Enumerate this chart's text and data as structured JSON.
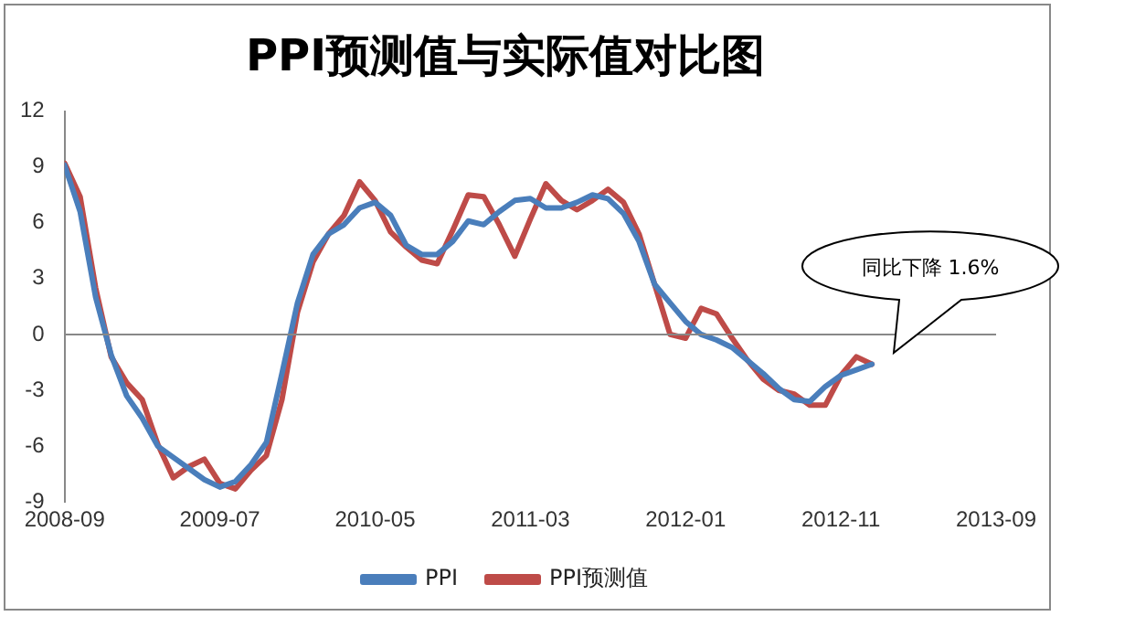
{
  "chart_data": {
    "type": "line",
    "title": "PPI预测值与实际值对比图",
    "x": [
      "2008-09",
      "2008-10",
      "2008-11",
      "2008-12",
      "2009-01",
      "2009-02",
      "2009-03",
      "2009-04",
      "2009-05",
      "2009-06",
      "2009-07",
      "2009-08",
      "2009-09",
      "2009-10",
      "2009-11",
      "2009-12",
      "2010-01",
      "2010-02",
      "2010-03",
      "2010-04",
      "2010-05",
      "2010-06",
      "2010-07",
      "2010-08",
      "2010-09",
      "2010-10",
      "2010-11",
      "2010-12",
      "2011-01",
      "2011-02",
      "2011-03",
      "2011-04",
      "2011-05",
      "2011-06",
      "2011-07",
      "2011-08",
      "2011-09",
      "2011-10",
      "2011-11",
      "2011-12",
      "2012-01",
      "2012-02",
      "2012-03",
      "2012-04",
      "2012-05",
      "2012-06",
      "2012-07",
      "2012-08",
      "2012-09",
      "2012-10",
      "2012-11",
      "2012-12",
      "2013-01"
    ],
    "series": [
      {
        "name": "PPI",
        "color": "#4a7ebb",
        "values": [
          9.1,
          6.6,
          2.0,
          -1.1,
          -3.3,
          -4.5,
          -6.0,
          -6.6,
          -7.2,
          -7.8,
          -8.2,
          -7.9,
          -7.0,
          -5.8,
          -2.1,
          1.7,
          4.3,
          5.4,
          5.9,
          6.8,
          7.1,
          6.4,
          4.8,
          4.3,
          4.3,
          5.0,
          6.1,
          5.9,
          6.6,
          7.2,
          7.3,
          6.8,
          6.8,
          7.1,
          7.5,
          7.3,
          6.5,
          5.0,
          2.7,
          1.7,
          0.7,
          0.0,
          -0.3,
          -0.7,
          -1.4,
          -2.1,
          -2.9,
          -3.5,
          -3.6,
          -2.8,
          -2.2,
          -1.9,
          -1.6
        ]
      },
      {
        "name": "PPI预测值",
        "color": "#be4b48",
        "values": [
          9.2,
          7.4,
          2.5,
          -1.2,
          -2.6,
          -3.5,
          -5.9,
          -7.7,
          -7.1,
          -6.7,
          -8.0,
          -8.3,
          -7.3,
          -6.5,
          -3.5,
          1.2,
          3.9,
          5.4,
          6.4,
          8.2,
          7.2,
          5.5,
          4.7,
          4.0,
          3.8,
          5.6,
          7.5,
          7.4,
          5.9,
          4.2,
          6.2,
          8.1,
          7.2,
          6.7,
          7.2,
          7.8,
          7.1,
          5.4,
          2.7,
          0.0,
          -0.2,
          1.4,
          1.1,
          -0.2,
          -1.4,
          -2.4,
          -3.0,
          -3.2,
          -3.8,
          -3.8,
          -2.2,
          -1.2,
          -1.6
        ]
      }
    ],
    "xlim": [
      "2008-09",
      "2013-09"
    ],
    "xticks": [
      "2008-09",
      "2009-07",
      "2010-05",
      "2011-03",
      "2012-01",
      "2012-11",
      "2013-09"
    ],
    "ylim": [
      -9,
      12
    ],
    "yticks": [
      -9,
      -6,
      -3,
      0,
      3,
      6,
      9,
      12
    ],
    "ref_lines": [
      {
        "axis": "y",
        "value": 0,
        "color": "#888888"
      }
    ],
    "grid": false,
    "legend": "bottom",
    "marker": "none",
    "line_style": "solid",
    "annotations": [
      "同比下降 1.6%"
    ]
  }
}
